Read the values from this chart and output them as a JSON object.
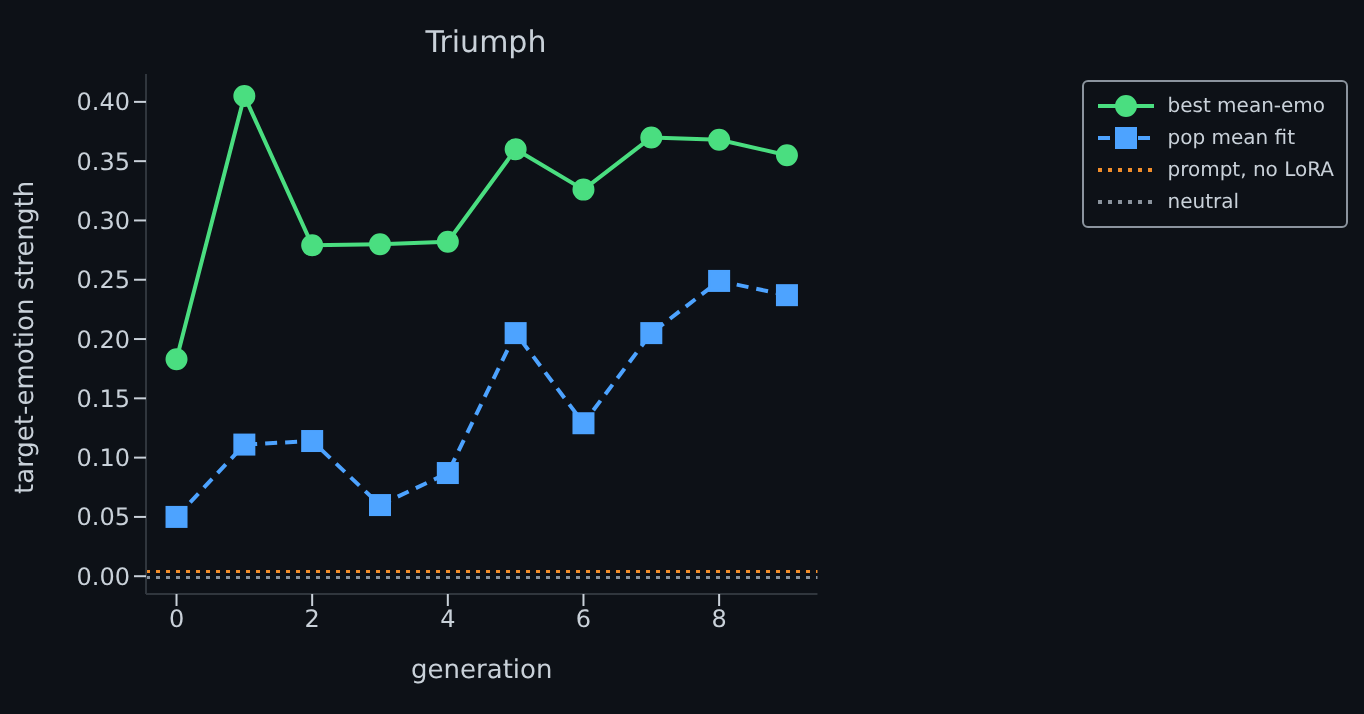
{
  "chart_data": {
    "type": "line",
    "title": "Triumph",
    "xlabel": "generation",
    "ylabel": "target-emotion strength",
    "x": [
      0,
      1,
      2,
      3,
      4,
      5,
      6,
      7,
      8,
      9
    ],
    "series": [
      {
        "name": "best mean-emo",
        "color": "#4ade80",
        "values": [
          0.183,
          0.405,
          0.279,
          0.28,
          0.282,
          0.36,
          0.326,
          0.37,
          0.368,
          0.355
        ],
        "marker": "circle",
        "line_style": "solid"
      },
      {
        "name": "pop mean fit",
        "color": "#4da3ff",
        "values": [
          0.05,
          0.111,
          0.114,
          0.06,
          0.087,
          0.205,
          0.129,
          0.205,
          0.249,
          0.237
        ],
        "marker": "square",
        "line_style": "dashed"
      }
    ],
    "ref_lines": [
      {
        "axis": "y",
        "value": 0.004,
        "label": "prompt, no LoRA",
        "color": "#f28e2b",
        "line_style": "dotted"
      },
      {
        "axis": "y",
        "value": -0.001,
        "label": "neutral",
        "color": "#8b949e",
        "line_style": "dotted"
      }
    ],
    "xlim": [
      -0.45,
      9.45
    ],
    "xticks": [
      0,
      2,
      4,
      6,
      8
    ],
    "ylim": [
      -0.015,
      0.4235
    ],
    "yticks": [
      {
        "value": 0,
        "label": "0.00"
      },
      {
        "value": 0.05,
        "label": "0.05"
      },
      {
        "value": 0.1,
        "label": "0.10"
      },
      {
        "value": 0.15,
        "label": "0.15"
      },
      {
        "value": 0.2,
        "label": "0.20"
      },
      {
        "value": 0.25,
        "label": "0.25"
      },
      {
        "value": 0.3,
        "label": "0.30"
      },
      {
        "value": 0.35,
        "label": "0.35"
      },
      {
        "value": 0.4,
        "label": "0.40"
      }
    ],
    "grid": false,
    "legend": "right"
  }
}
